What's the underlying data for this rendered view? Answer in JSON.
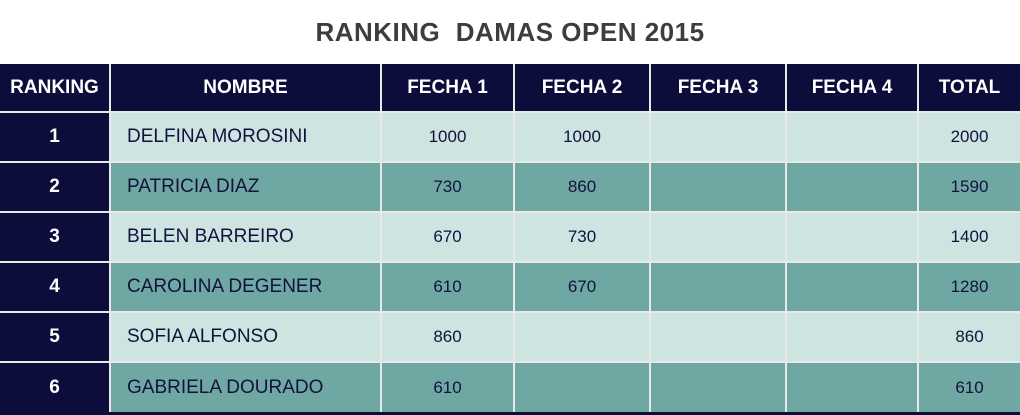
{
  "title": "RANKING  DAMAS OPEN 2015",
  "table": {
    "columns": [
      "RANKING",
      "NOMBRE",
      "FECHA 1",
      "FECHA 2",
      "FECHA 3",
      "FECHA 4",
      "TOTAL"
    ],
    "rows": [
      {
        "ranking": "1",
        "nombre": "DELFINA MOROSINI",
        "fecha1": "1000",
        "fecha2": "1000",
        "fecha3": "",
        "fecha4": "",
        "total": "2000"
      },
      {
        "ranking": "2",
        "nombre": "PATRICIA DIAZ",
        "fecha1": "730",
        "fecha2": "860",
        "fecha3": "",
        "fecha4": "",
        "total": "1590"
      },
      {
        "ranking": "3",
        "nombre": "BELEN BARREIRO",
        "fecha1": "670",
        "fecha2": "730",
        "fecha3": "",
        "fecha4": "",
        "total": "1400"
      },
      {
        "ranking": "4",
        "nombre": "CAROLINA DEGENER",
        "fecha1": "610",
        "fecha2": "670",
        "fecha3": "",
        "fecha4": "",
        "total": "1280"
      },
      {
        "ranking": "5",
        "nombre": "SOFIA ALFONSO",
        "fecha1": "860",
        "fecha2": "",
        "fecha3": "",
        "fecha4": "",
        "total": "860"
      },
      {
        "ranking": "6",
        "nombre": "GABRIELA DOURADO",
        "fecha1": "610",
        "fecha2": "",
        "fecha3": "",
        "fecha4": "",
        "total": "610"
      }
    ]
  },
  "colors": {
    "header_navy": "#0d0d3c",
    "row_light": "#cde4e1",
    "row_dark": "#6fa8a2",
    "grid_line": "#e9e9e9",
    "title_text": "#3d3d3d",
    "cell_text": "#12123f",
    "header_text": "#ffffff"
  }
}
